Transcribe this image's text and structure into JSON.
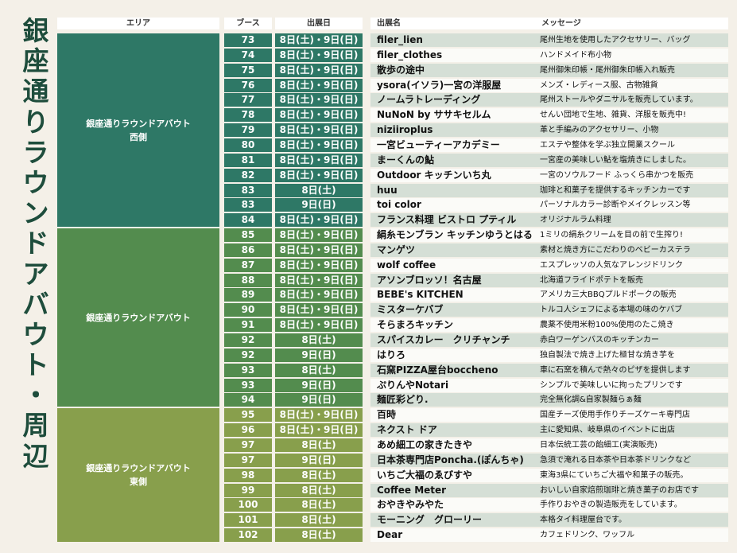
{
  "title": "銀座通りラウンドアバウト・周辺",
  "headers": {
    "area": "エリア",
    "booth": "ブース",
    "date": "出展日",
    "name": "出展名",
    "message": "メッセージ"
  },
  "colors": {
    "west": "#2e7866",
    "center": "#538c4e",
    "east": "#889f4c",
    "title": "#1e4d3c",
    "stripe": "#d5dfd6"
  },
  "areas": [
    {
      "key": "west",
      "label": "銀座通りラウンドアバウト\n西側",
      "count": 13
    },
    {
      "key": "center",
      "label": "銀座通りラウンドアバウト",
      "count": 12
    },
    {
      "key": "east",
      "label": "銀座通りラウンドアバウト\n東側",
      "count": 9
    }
  ],
  "rows": [
    {
      "booth": "73",
      "date": "8日(土)・9日(日)",
      "name": "filer_lien",
      "message": "尾州生地を使用したアクセサリー、バッグ"
    },
    {
      "booth": "74",
      "date": "8日(土)・9日(日)",
      "name": "filer_clothes",
      "message": "ハンドメイド布小物"
    },
    {
      "booth": "75",
      "date": "8日(土)・9日(日)",
      "name": "散歩の途中",
      "message": "尾州御朱印帳・尾州御朱印帳入れ販売"
    },
    {
      "booth": "76",
      "date": "8日(土)・9日(日)",
      "name": "ysora(イソラ)一宮の洋服屋",
      "message": "メンズ・レディース服、古物雑貨"
    },
    {
      "booth": "77",
      "date": "8日(土)・9日(日)",
      "name": "ノームラトレーディング",
      "message": "尾州ストールやダニサルを販売しています。"
    },
    {
      "booth": "78",
      "date": "8日(土)・9日(日)",
      "name": "NuNoN by ササキセルム",
      "message": "せんい団地で生地、雑貨、洋服を販売中!"
    },
    {
      "booth": "79",
      "date": "8日(土)・9日(日)",
      "name": "niziiroplus",
      "message": "革と手編みのアクセサリー、小物"
    },
    {
      "booth": "80",
      "date": "8日(土)・9日(日)",
      "name": "一宮ビューティーアカデミー",
      "message": "エステや整体を学ぶ独立開業スクール"
    },
    {
      "booth": "81",
      "date": "8日(土)・9日(日)",
      "name": "まーくんの鮎",
      "message": "一宮産の美味しい鮎を塩焼きにしました。"
    },
    {
      "booth": "82",
      "date": "8日(土)・9日(日)",
      "name": "Outdoor キッチンいち丸",
      "message": "一宮のソウルフード ふっくら串かつを販売"
    },
    {
      "booth": "83",
      "date": "8日(土)",
      "name": "huu",
      "message": "珈琲と和菓子を提供するキッチンカーです"
    },
    {
      "booth": "83",
      "date": "9日(日)",
      "name": "toi color",
      "message": "パーソナルカラー診断やメイクレッスン等"
    },
    {
      "booth": "84",
      "date": "8日(土)・9日(日)",
      "name": "フランス料理 ビストロ プティル",
      "message": "オリジナルラム料理"
    },
    {
      "booth": "85",
      "date": "8日(土)・9日(日)",
      "name": "絹糸モンブラン キッチンゆうとはる",
      "message": "1ミリの絹糸クリームを目の前で生搾り!"
    },
    {
      "booth": "86",
      "date": "8日(土)・9日(日)",
      "name": "マンゲツ",
      "message": "素材と焼き方にこだわりのベビーカステラ"
    },
    {
      "booth": "87",
      "date": "8日(土)・9日(日)",
      "name": "wolf coffee",
      "message": "エスプレッソの人気なアレンジドリンク"
    },
    {
      "booth": "88",
      "date": "8日(土)・9日(日)",
      "name": "アソンブロッソ！名古屋",
      "message": "北海道フライドポテトを販売"
    },
    {
      "booth": "89",
      "date": "8日(土)・9日(日)",
      "name": "BEBE's KITCHEN",
      "message": "アメリカ三大BBQプルドポークの販売"
    },
    {
      "booth": "90",
      "date": "8日(土)・9日(日)",
      "name": "ミスターケバブ",
      "message": "トルコ人シェフによる本場の味のケバブ"
    },
    {
      "booth": "91",
      "date": "8日(土)・9日(日)",
      "name": "そらまろキッチン",
      "message": "農薬不使用米粉100%使用のたこ焼き"
    },
    {
      "booth": "92",
      "date": "8日(土)",
      "name": "スパイスカレー　クリチャンチ",
      "message": "赤白ワーゲンバスのキッチンカー"
    },
    {
      "booth": "92",
      "date": "9日(日)",
      "name": "はりろ",
      "message": "独自製法で焼き上げた極甘な焼き芋を"
    },
    {
      "booth": "93",
      "date": "8日(土)",
      "name": "石窯PIZZA屋台boccheno",
      "message": "車に石窯を積んで熱々のピザを提供します"
    },
    {
      "booth": "93",
      "date": "9日(日)",
      "name": "ぷりんやNotari",
      "message": "シンプルで美味しいに拘ったプリンです"
    },
    {
      "booth": "94",
      "date": "9日(日)",
      "name": "麺匠彩どり.",
      "message": "完全無化調&自家製麺らぁ麺"
    },
    {
      "booth": "95",
      "date": "8日(土)・9日(日)",
      "name": "百時",
      "message": "国産チーズ使用手作りチーズケーキ専門店"
    },
    {
      "booth": "96",
      "date": "8日(土)・9日(日)",
      "name": "ネクスト ドア",
      "message": "主に愛知県、岐阜県のイベントに出店"
    },
    {
      "booth": "97",
      "date": "8日(土)",
      "name": "あめ細工の家きたきや",
      "message": "日本伝統工芸の飴細工(実演販売)"
    },
    {
      "booth": "97",
      "date": "9日(日)",
      "name": "日本茶専門店Poncha.(ぽんちゃ)",
      "message": "急須で淹れる日本茶や日本茶ドリンクなど"
    },
    {
      "booth": "98",
      "date": "8日(土)",
      "name": "いちご大福のゑびすや",
      "message": "東海3県にていちご大福や和菓子の販売。"
    },
    {
      "booth": "99",
      "date": "8日(土)",
      "name": "Coffee Meter",
      "message": "おいしい自家焙煎珈琲と焼き菓子のお店です"
    },
    {
      "booth": "100",
      "date": "8日(土)",
      "name": "おやきやみやた",
      "message": "手作りおやきの製造販売をしています。"
    },
    {
      "booth": "101",
      "date": "8日(土)",
      "name": "モーニング　グローリー",
      "message": "本格タイ料理屋台です。"
    },
    {
      "booth": "102",
      "date": "8日(土)",
      "name": "Dear",
      "message": "カフェドリンク、ワッフル"
    }
  ]
}
